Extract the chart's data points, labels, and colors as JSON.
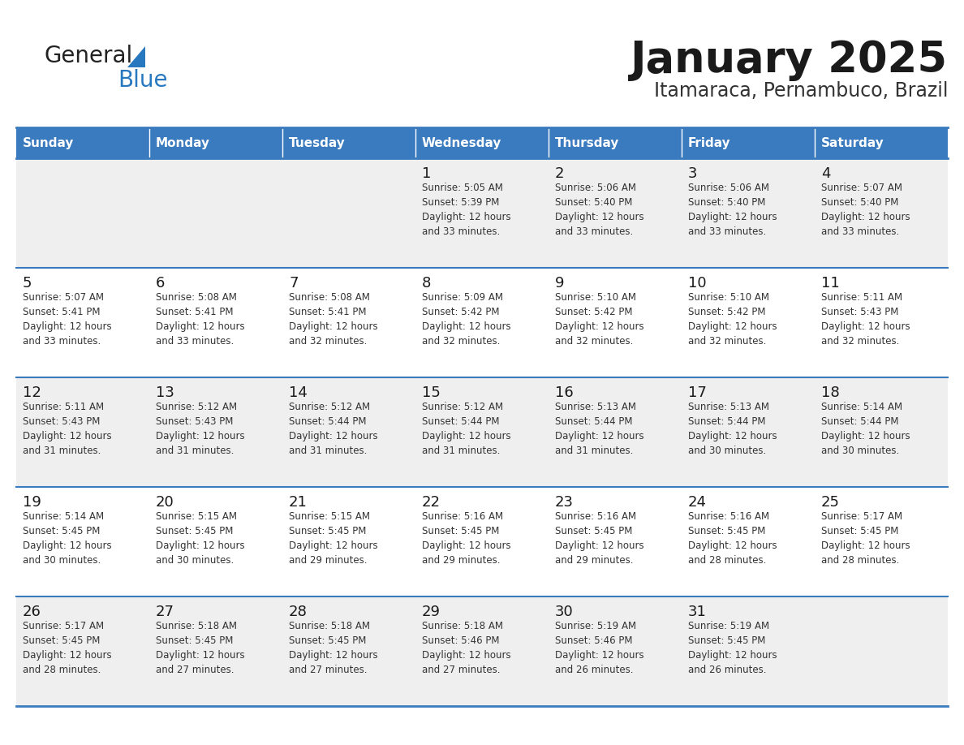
{
  "title": "January 2025",
  "subtitle": "Itamaraca, Pernambuco, Brazil",
  "header_color": "#3a7abf",
  "header_text_color": "#ffffff",
  "cell_bg_odd": "#efefef",
  "cell_bg_even": "#ffffff",
  "text_color": "#333333",
  "line_color": "#3a7abf",
  "days_of_week": [
    "Sunday",
    "Monday",
    "Tuesday",
    "Wednesday",
    "Thursday",
    "Friday",
    "Saturday"
  ],
  "logo_general_color": "#222222",
  "logo_blue_color": "#2778bf",
  "logo_triangle_color": "#2778bf",
  "weeks": [
    [
      {
        "day": "",
        "info": ""
      },
      {
        "day": "",
        "info": ""
      },
      {
        "day": "",
        "info": ""
      },
      {
        "day": "1",
        "info": "Sunrise: 5:05 AM\nSunset: 5:39 PM\nDaylight: 12 hours\nand 33 minutes."
      },
      {
        "day": "2",
        "info": "Sunrise: 5:06 AM\nSunset: 5:40 PM\nDaylight: 12 hours\nand 33 minutes."
      },
      {
        "day": "3",
        "info": "Sunrise: 5:06 AM\nSunset: 5:40 PM\nDaylight: 12 hours\nand 33 minutes."
      },
      {
        "day": "4",
        "info": "Sunrise: 5:07 AM\nSunset: 5:40 PM\nDaylight: 12 hours\nand 33 minutes."
      }
    ],
    [
      {
        "day": "5",
        "info": "Sunrise: 5:07 AM\nSunset: 5:41 PM\nDaylight: 12 hours\nand 33 minutes."
      },
      {
        "day": "6",
        "info": "Sunrise: 5:08 AM\nSunset: 5:41 PM\nDaylight: 12 hours\nand 33 minutes."
      },
      {
        "day": "7",
        "info": "Sunrise: 5:08 AM\nSunset: 5:41 PM\nDaylight: 12 hours\nand 32 minutes."
      },
      {
        "day": "8",
        "info": "Sunrise: 5:09 AM\nSunset: 5:42 PM\nDaylight: 12 hours\nand 32 minutes."
      },
      {
        "day": "9",
        "info": "Sunrise: 5:10 AM\nSunset: 5:42 PM\nDaylight: 12 hours\nand 32 minutes."
      },
      {
        "day": "10",
        "info": "Sunrise: 5:10 AM\nSunset: 5:42 PM\nDaylight: 12 hours\nand 32 minutes."
      },
      {
        "day": "11",
        "info": "Sunrise: 5:11 AM\nSunset: 5:43 PM\nDaylight: 12 hours\nand 32 minutes."
      }
    ],
    [
      {
        "day": "12",
        "info": "Sunrise: 5:11 AM\nSunset: 5:43 PM\nDaylight: 12 hours\nand 31 minutes."
      },
      {
        "day": "13",
        "info": "Sunrise: 5:12 AM\nSunset: 5:43 PM\nDaylight: 12 hours\nand 31 minutes."
      },
      {
        "day": "14",
        "info": "Sunrise: 5:12 AM\nSunset: 5:44 PM\nDaylight: 12 hours\nand 31 minutes."
      },
      {
        "day": "15",
        "info": "Sunrise: 5:12 AM\nSunset: 5:44 PM\nDaylight: 12 hours\nand 31 minutes."
      },
      {
        "day": "16",
        "info": "Sunrise: 5:13 AM\nSunset: 5:44 PM\nDaylight: 12 hours\nand 31 minutes."
      },
      {
        "day": "17",
        "info": "Sunrise: 5:13 AM\nSunset: 5:44 PM\nDaylight: 12 hours\nand 30 minutes."
      },
      {
        "day": "18",
        "info": "Sunrise: 5:14 AM\nSunset: 5:44 PM\nDaylight: 12 hours\nand 30 minutes."
      }
    ],
    [
      {
        "day": "19",
        "info": "Sunrise: 5:14 AM\nSunset: 5:45 PM\nDaylight: 12 hours\nand 30 minutes."
      },
      {
        "day": "20",
        "info": "Sunrise: 5:15 AM\nSunset: 5:45 PM\nDaylight: 12 hours\nand 30 minutes."
      },
      {
        "day": "21",
        "info": "Sunrise: 5:15 AM\nSunset: 5:45 PM\nDaylight: 12 hours\nand 29 minutes."
      },
      {
        "day": "22",
        "info": "Sunrise: 5:16 AM\nSunset: 5:45 PM\nDaylight: 12 hours\nand 29 minutes."
      },
      {
        "day": "23",
        "info": "Sunrise: 5:16 AM\nSunset: 5:45 PM\nDaylight: 12 hours\nand 29 minutes."
      },
      {
        "day": "24",
        "info": "Sunrise: 5:16 AM\nSunset: 5:45 PM\nDaylight: 12 hours\nand 28 minutes."
      },
      {
        "day": "25",
        "info": "Sunrise: 5:17 AM\nSunset: 5:45 PM\nDaylight: 12 hours\nand 28 minutes."
      }
    ],
    [
      {
        "day": "26",
        "info": "Sunrise: 5:17 AM\nSunset: 5:45 PM\nDaylight: 12 hours\nand 28 minutes."
      },
      {
        "day": "27",
        "info": "Sunrise: 5:18 AM\nSunset: 5:45 PM\nDaylight: 12 hours\nand 27 minutes."
      },
      {
        "day": "28",
        "info": "Sunrise: 5:18 AM\nSunset: 5:45 PM\nDaylight: 12 hours\nand 27 minutes."
      },
      {
        "day": "29",
        "info": "Sunrise: 5:18 AM\nSunset: 5:46 PM\nDaylight: 12 hours\nand 27 minutes."
      },
      {
        "day": "30",
        "info": "Sunrise: 5:19 AM\nSunset: 5:46 PM\nDaylight: 12 hours\nand 26 minutes."
      },
      {
        "day": "31",
        "info": "Sunrise: 5:19 AM\nSunset: 5:45 PM\nDaylight: 12 hours\nand 26 minutes."
      },
      {
        "day": "",
        "info": ""
      }
    ]
  ]
}
